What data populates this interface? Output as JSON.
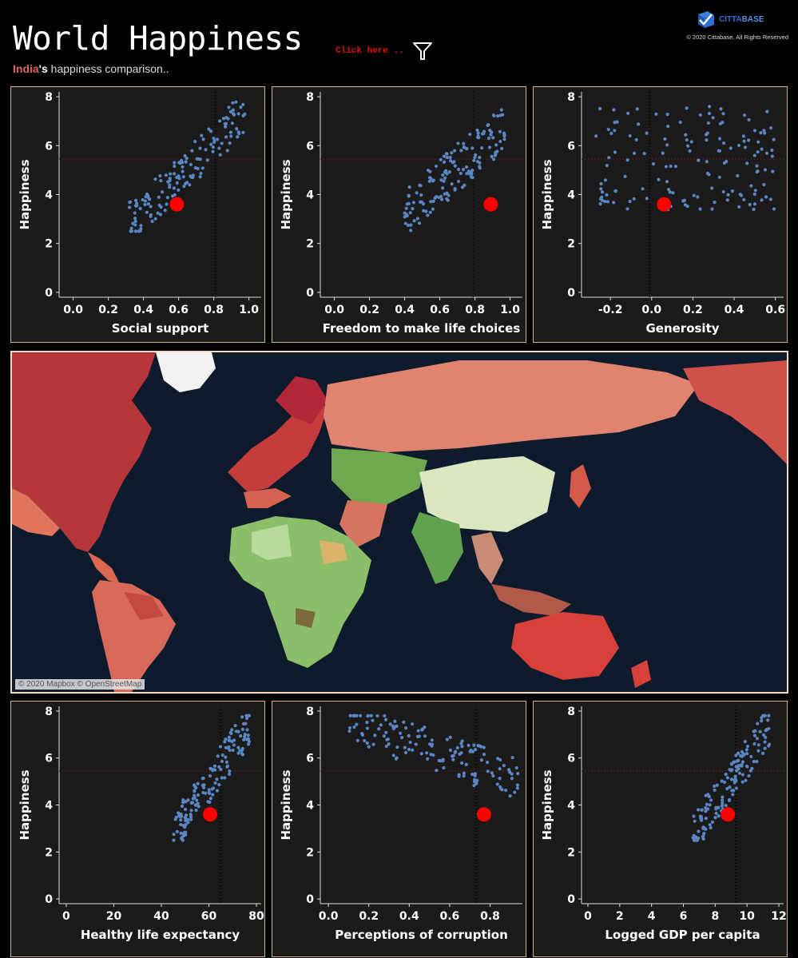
{
  "header": {
    "title": "World Happiness",
    "click_hint": "Click here ..",
    "subtitle_country": "India",
    "subtitle_possessive": "'s",
    "subtitle_rest": " happiness comparison..",
    "logo_part1": "CITTA",
    "logo_part2": "BASE",
    "copyright": "© 2020 Cittabase. All Rights Reserved"
  },
  "map": {
    "credit": "© 2020 Mapbox © OpenStreetMap"
  },
  "colors": {
    "point": "#5b86c4",
    "highlight": "#ff0000",
    "reference_line": "#7a1a1a",
    "panel_border": "#d9b27c"
  },
  "chart_data": [
    {
      "type": "scatter",
      "xlabel": "Social support",
      "ylabel": "Happiness",
      "xticks": [
        "0.0",
        "0.2",
        "0.4",
        "0.6",
        "0.8",
        "1.0"
      ],
      "xtick_values": [
        0,
        0.2,
        0.4,
        0.6,
        0.8,
        1.0
      ],
      "xlim": [
        -0.08,
        1.07
      ],
      "yticks": [
        "0",
        "2",
        "4",
        "6",
        "8"
      ],
      "ylim": [
        -0.2,
        8.2
      ],
      "mean_x": 0.81,
      "mean_y": 5.45,
      "highlight": {
        "x": 0.59,
        "y": 3.6
      },
      "trend": 1,
      "gen": {
        "xmin": 0.32,
        "xmax": 0.98
      }
    },
    {
      "type": "scatter",
      "xlabel": "Freedom to make life choices",
      "ylabel": "Happiness",
      "xticks": [
        "0.0",
        "0.2",
        "0.4",
        "0.6",
        "0.8",
        "1.0"
      ],
      "xtick_values": [
        0,
        0.2,
        0.4,
        0.6,
        0.8,
        1.0
      ],
      "xlim": [
        -0.08,
        1.07
      ],
      "yticks": [
        "0",
        "2",
        "4",
        "6",
        "8"
      ],
      "ylim": [
        -0.2,
        8.2
      ],
      "mean_x": 0.79,
      "mean_y": 5.45,
      "highlight": {
        "x": 0.89,
        "y": 3.6
      },
      "trend": 2,
      "gen": {
        "xmin": 0.4,
        "xmax": 0.97
      }
    },
    {
      "type": "scatter",
      "xlabel": "Generosity",
      "ylabel": "Happiness",
      "xticks": [
        "-0.2",
        "0.0",
        "0.2",
        "0.4",
        "0.6"
      ],
      "xtick_values": [
        -0.2,
        0,
        0.2,
        0.4,
        0.6
      ],
      "xlim": [
        -0.34,
        0.64
      ],
      "yticks": [
        "0",
        "2",
        "4",
        "6",
        "8"
      ],
      "ylim": [
        -0.2,
        8.2
      ],
      "mean_x": -0.01,
      "mean_y": 5.45,
      "highlight": {
        "x": 0.06,
        "y": 3.6
      },
      "trend": 0,
      "gen": {
        "xmin": -0.27,
        "xmax": 0.6
      }
    },
    {
      "type": "scatter",
      "xlabel": "Healthy life expectancy",
      "ylabel": "Happiness",
      "xticks": [
        "0",
        "20",
        "40",
        "60",
        "80"
      ],
      "xtick_values": [
        0,
        20,
        40,
        60,
        80
      ],
      "xlim": [
        -3,
        82
      ],
      "yticks": [
        "0",
        "2",
        "4",
        "6",
        "8"
      ],
      "ylim": [
        -0.2,
        8.2
      ],
      "mean_x": 65,
      "mean_y": 5.45,
      "highlight": {
        "x": 60.5,
        "y": 3.6
      },
      "trend": 1,
      "gen": {
        "xmin": 45,
        "xmax": 77
      }
    },
    {
      "type": "scatter",
      "xlabel": "Perceptions of corruption",
      "ylabel": "Happiness",
      "xticks": [
        "0.0",
        "0.2",
        "0.4",
        "0.6",
        "0.8"
      ],
      "xtick_values": [
        0,
        0.2,
        0.4,
        0.6,
        0.8
      ],
      "xlim": [
        -0.04,
        0.96
      ],
      "yticks": [
        "0",
        "2",
        "4",
        "6",
        "8"
      ],
      "ylim": [
        -0.2,
        8.2
      ],
      "mean_x": 0.73,
      "mean_y": 5.45,
      "highlight": {
        "x": 0.77,
        "y": 3.6
      },
      "trend": 3,
      "gen": {
        "xmin": 0.1,
        "xmax": 0.94
      }
    },
    {
      "type": "scatter",
      "xlabel": "Logged GDP per capita",
      "ylabel": "Happiness",
      "xticks": [
        "0",
        "2",
        "4",
        "6",
        "8",
        "10",
        "12"
      ],
      "xtick_values": [
        0,
        2,
        4,
        6,
        8,
        10,
        12
      ],
      "xlim": [
        -0.4,
        12.3
      ],
      "yticks": [
        "0",
        "2",
        "4",
        "6",
        "8"
      ],
      "ylim": [
        -0.2,
        8.2
      ],
      "mean_x": 9.3,
      "mean_y": 5.45,
      "highlight": {
        "x": 8.8,
        "y": 3.6
      },
      "trend": 1,
      "gen": {
        "xmin": 6.6,
        "xmax": 11.5
      }
    }
  ]
}
